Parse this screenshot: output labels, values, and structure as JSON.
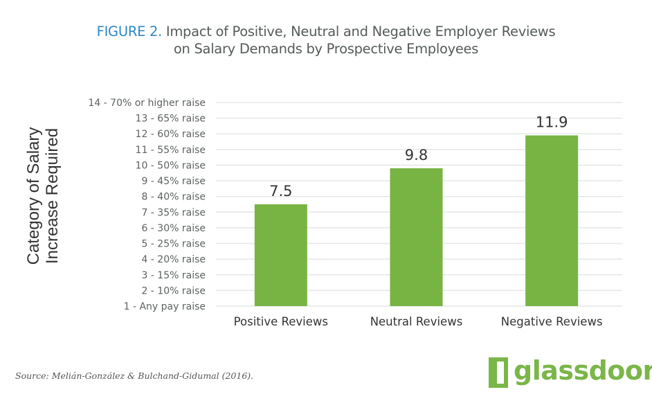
{
  "title": {
    "figure_label": "FIGURE 2.",
    "line1": "Impact of Positive, Neutral and Negative Employer Reviews",
    "line2": "on Salary Demands by Prospective Employees"
  },
  "y_axis_title": {
    "line1": "Category of Salary",
    "line2": "Increase Required"
  },
  "source": "Source: Melián-González & Bulchand-Gidumal (2016).",
  "logo": {
    "text": "glassdoor",
    "registered": "®",
    "color": "#7ab648"
  },
  "colors": {
    "bar": "#77b443",
    "grid": "#e3e8e6",
    "figure_label": "#2e87c8"
  },
  "chart_data": {
    "type": "bar",
    "title": "FIGURE 2. Impact of Positive, Neutral and Negative Employer Reviews on Salary Demands by Prospective Employees",
    "xlabel": "",
    "ylabel": "Category of Salary Increase Required",
    "categories": [
      "Positive Reviews",
      "Neutral Reviews",
      "Negative Reviews"
    ],
    "values": [
      7.5,
      9.8,
      11.9
    ],
    "data_labels": [
      "7.5",
      "9.8",
      "11.9"
    ],
    "ylim": [
      1,
      14
    ],
    "yticks": [
      {
        "value": 14,
        "label": "14 - 70% or higher raise"
      },
      {
        "value": 13,
        "label": "13 - 65% raise"
      },
      {
        "value": 12,
        "label": "12 - 60% raise"
      },
      {
        "value": 11,
        "label": "11 - 55% raise"
      },
      {
        "value": 10,
        "label": "10 - 50% raise"
      },
      {
        "value": 9,
        "label": "9 - 45% raise"
      },
      {
        "value": 8,
        "label": "8 - 40% raise"
      },
      {
        "value": 7,
        "label": "7 - 35% raise"
      },
      {
        "value": 6,
        "label": "6 - 30% raise"
      },
      {
        "value": 5,
        "label": "5 - 25% raise"
      },
      {
        "value": 4,
        "label": "4 - 20% raise"
      },
      {
        "value": 3,
        "label": "3 - 15% raise"
      },
      {
        "value": 2,
        "label": "2 - 10% raise"
      },
      {
        "value": 1,
        "label": "1 - Any pay raise"
      }
    ],
    "grid": true,
    "legend": "none"
  }
}
